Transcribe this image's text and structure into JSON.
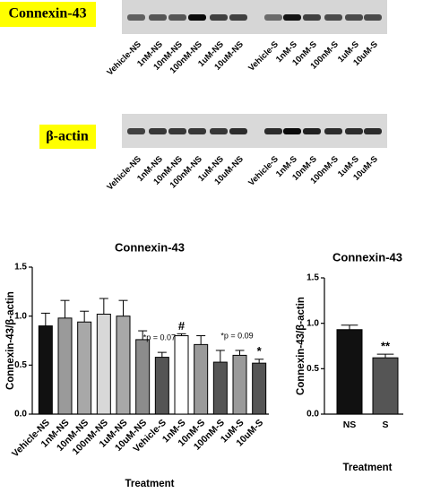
{
  "blots": [
    {
      "label": "Connexin-43",
      "lanes": [
        "Vehicle-NS",
        "1nM-NS",
        "10nM-NS",
        "100nM-NS",
        "1uM-NS",
        "10uM-NS",
        "Vehicle-S",
        "1nM-S",
        "10nM-S",
        "100nM-S",
        "1uM-S",
        "10uM-S"
      ]
    },
    {
      "label": "β-actin",
      "lanes": [
        "Vehicle-NS",
        "1nM-NS",
        "10nM-NS",
        "100nM-NS",
        "1uM-NS",
        "10uM-NS",
        "Vehicle-S",
        "1nM-S",
        "10nM-S",
        "100nM-S",
        "1uM-S",
        "10uM-S"
      ]
    }
  ],
  "chart_data": [
    {
      "type": "bar",
      "title": "Connexin-43",
      "y_label": "Connexin-43/β-actin",
      "x_label": "Treatment",
      "categories": [
        "Vehicle-NS",
        "1nM-NS",
        "10nM-NS",
        "100nM-NS",
        "1uM-NS",
        "10uM-NS",
        "Vehicle-S",
        "1nM-S",
        "10nM-S",
        "100nM-S",
        "1uM-S",
        "10uM-S"
      ],
      "values": [
        0.9,
        0.98,
        0.94,
        1.02,
        1.0,
        0.76,
        0.58,
        0.8,
        0.71,
        0.53,
        0.6,
        0.52
      ],
      "errors": [
        0.13,
        0.18,
        0.11,
        0.16,
        0.16,
        0.09,
        0.05,
        0.02,
        0.09,
        0.12,
        0.05,
        0.04
      ],
      "colors": [
        "#111111",
        "#9a9a9a",
        "#a8a8a8",
        "#d8d8d8",
        "#a8a8a8",
        "#8c8c8c",
        "#555555",
        "#ffffff",
        "#9a9a9a",
        "#555555",
        "#9a9a9a",
        "#555555"
      ],
      "annotations": [
        null,
        null,
        null,
        null,
        null,
        null,
        "*p = 0.07",
        "#",
        null,
        null,
        "*p = 0.09",
        "*"
      ],
      "ylim": [
        0,
        1.5
      ],
      "yticks": [
        {
          "value": 0,
          "label": "0.0"
        },
        0.5,
        {
          "value": 1,
          "label": "1.0"
        },
        1.5
      ]
    },
    {
      "type": "bar",
      "title": "Connexin-43",
      "y_label": "Connexin-43/β-actin",
      "x_label": "Treatment",
      "categories": [
        "NS",
        "S"
      ],
      "values": [
        0.93,
        0.62
      ],
      "errors": [
        0.05,
        0.04
      ],
      "colors": [
        "#111111",
        "#555555"
      ],
      "annotations": [
        null,
        "**"
      ],
      "ylim": [
        0,
        1.5
      ],
      "yticks": [
        {
          "value": 0,
          "label": "0.0"
        },
        0.5,
        {
          "value": 1,
          "label": "1.0"
        },
        1.5
      ]
    }
  ]
}
